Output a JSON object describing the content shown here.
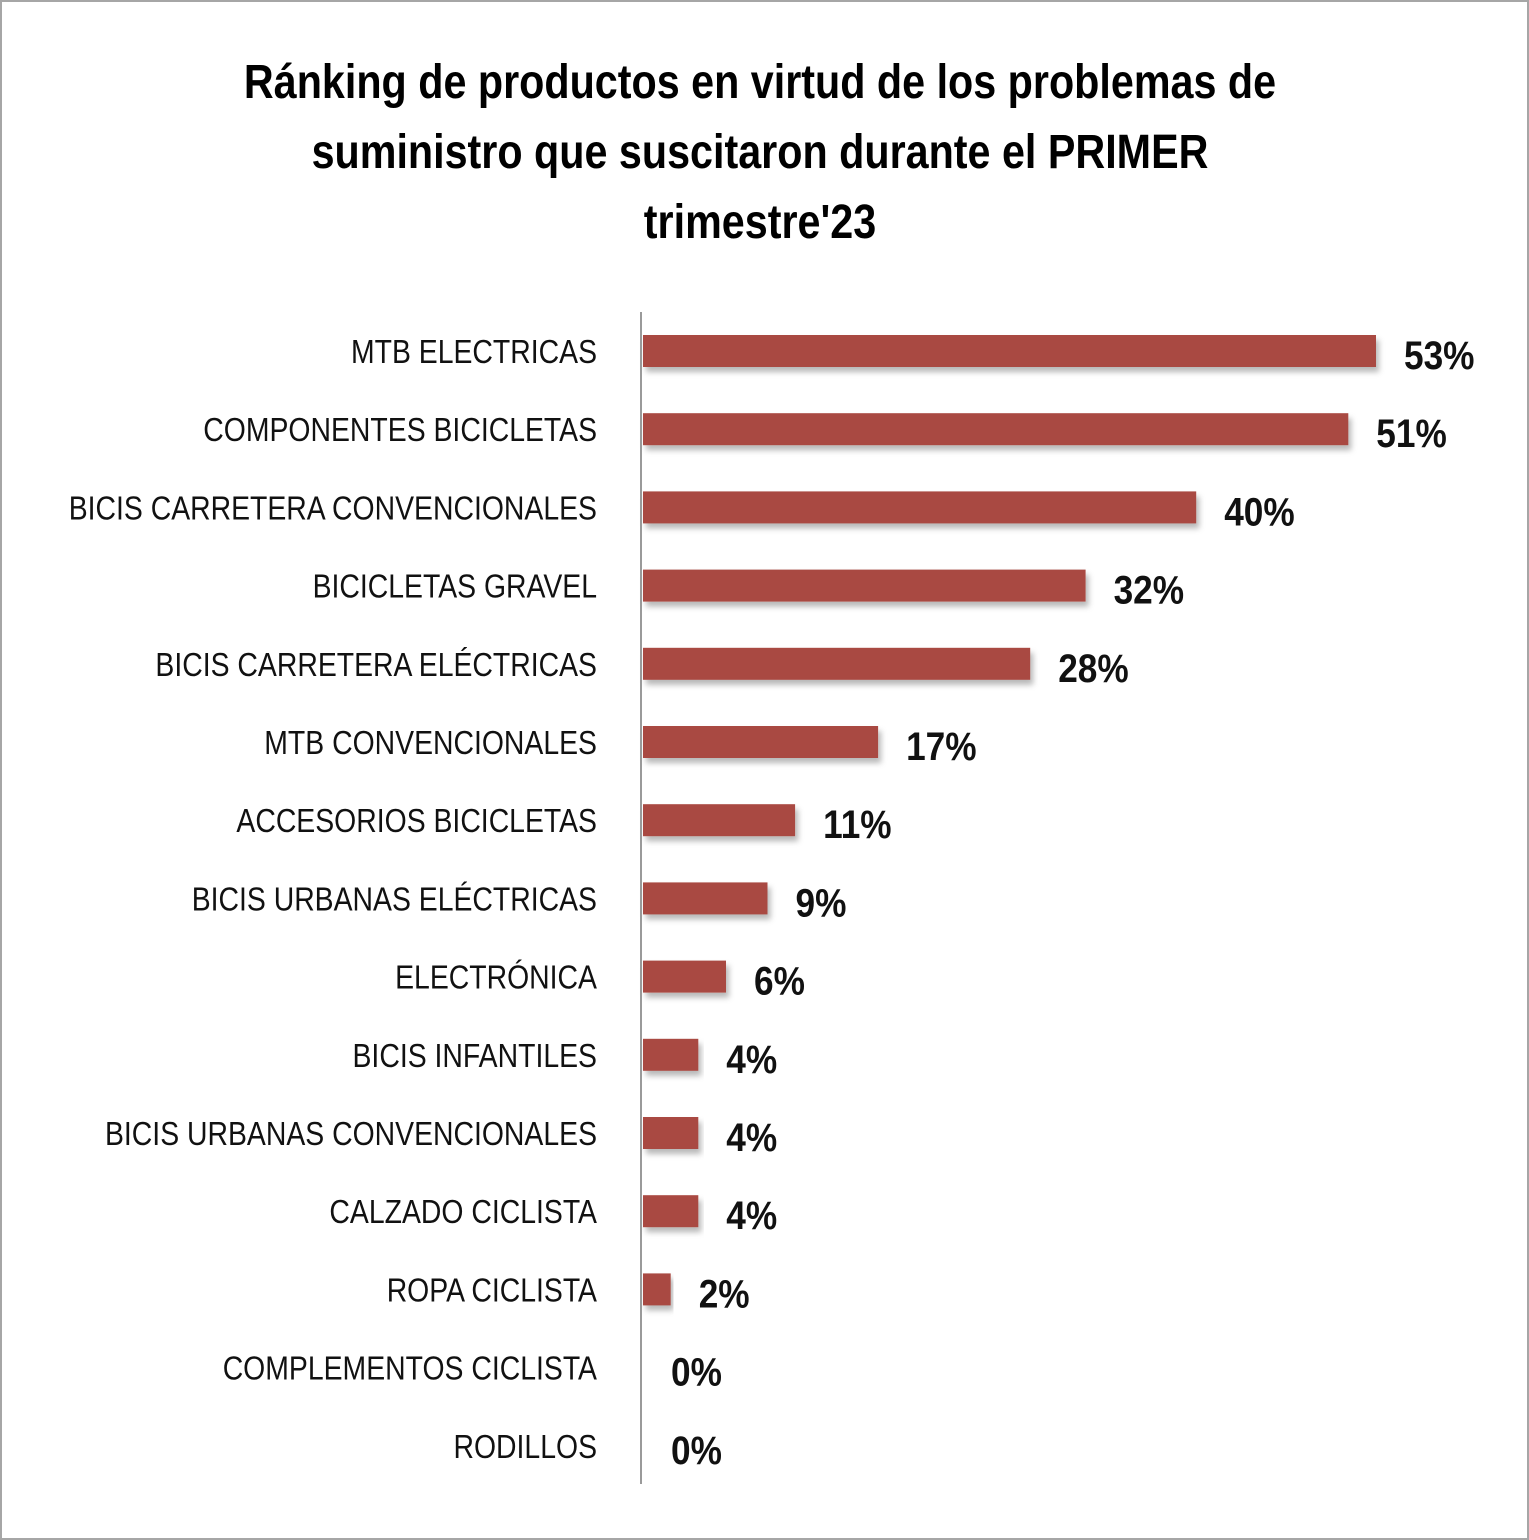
{
  "chart_data": {
    "type": "bar",
    "orientation": "horizontal",
    "title_lines": [
      "Ránking de productos en virtud de los problemas de",
      "suministro que suscitaron durante el PRIMER",
      "trimestre'23"
    ],
    "categories": [
      "MTB ELECTRICAS",
      "COMPONENTES BICICLETAS",
      "BICIS CARRETERA CONVENCIONALES",
      "BICICLETAS GRAVEL",
      "BICIS CARRETERA ELÉCTRICAS",
      "MTB CONVENCIONALES",
      "ACCESORIOS BICICLETAS",
      "BICIS URBANAS ELÉCTRICAS",
      "ELECTRÓNICA",
      "BICIS INFANTILES",
      "BICIS URBANAS CONVENCIONALES",
      "CALZADO CICLISTA",
      "ROPA CICLISTA",
      "COMPLEMENTOS CICLISTA",
      "RODILLOS"
    ],
    "values": [
      53,
      51,
      40,
      32,
      28,
      17,
      11,
      9,
      6,
      4,
      4,
      4,
      2,
      0,
      0
    ],
    "value_labels": [
      "53%",
      "51%",
      "40%",
      "32%",
      "28%",
      "17%",
      "11%",
      "9%",
      "6%",
      "4%",
      "4%",
      "4%",
      "2%",
      "0%",
      "0%"
    ],
    "xlim": [
      0,
      53
    ],
    "grid": false,
    "legend": "none",
    "bar_color": "#a94a43"
  }
}
